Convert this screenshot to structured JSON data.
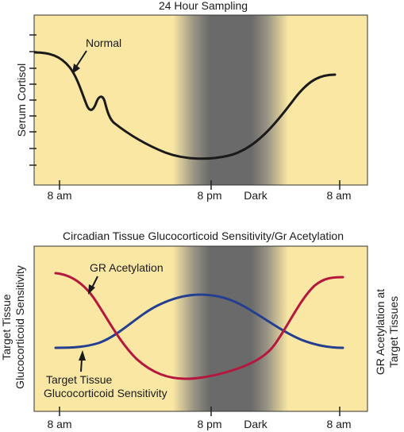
{
  "top_panel": {
    "title": "24 Hour Sampling",
    "y_axis_label": "Serum Cortisol",
    "curve_label": "Normal",
    "x_ticks": [
      "8 am",
      "8 pm",
      "Dark",
      "8 am"
    ]
  },
  "bottom_panel": {
    "title": "Circadian Tissue Glucocorticoid Sensitivity/Gr Acetylation",
    "left_axis_label_line1": "Target Tissue",
    "left_axis_label_line2": "Glucocorticoid Sensitivity",
    "right_axis_label_line1": "GR Acetylation at",
    "right_axis_label_line2": "Target Tissues",
    "curve_label_red": "GR Acetylation",
    "curve_label_blue_line1": "Target Tissue",
    "curve_label_blue_line2": "Glucocorticoid Sensitivity",
    "x_ticks": [
      "8 am",
      "8 pm",
      "Dark",
      "8 am"
    ]
  },
  "colors": {
    "panel_bg": "#f9e7a3",
    "dark_band": "#6e6e6e",
    "cortisol_curve": "#1a1a1a",
    "gr_acetylation_curve": "#b5173f",
    "sensitivity_curve": "#243f8f"
  }
}
